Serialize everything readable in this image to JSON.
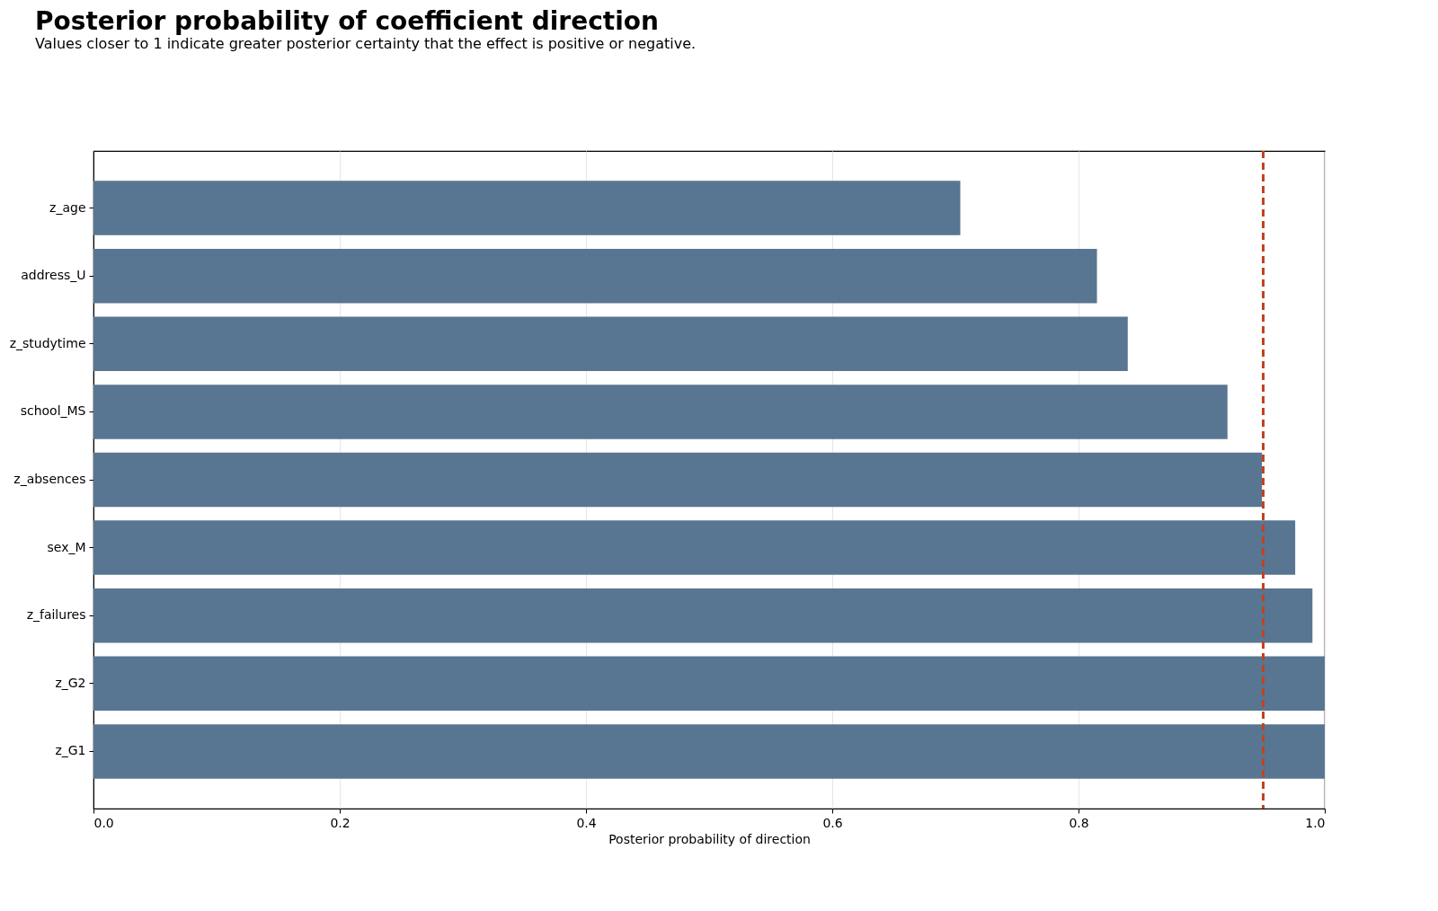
{
  "chart_data": {
    "type": "bar",
    "orientation": "horizontal",
    "title": "Posterior probability of coefficient direction",
    "subtitle": "Values closer to 1 indicate greater posterior certainty that the effect is positive or negative.",
    "xlabel": "Posterior probability of direction",
    "categories": [
      "z_age",
      "address_U",
      "z_studytime",
      "school_MS",
      "z_absences",
      "sex_M",
      "z_failures",
      "z_G2",
      "z_G1"
    ],
    "values": [
      0.704,
      0.815,
      0.84,
      0.921,
      0.949,
      0.976,
      0.99,
      1.0,
      1.0
    ],
    "color": "#587691",
    "xlim": [
      0.0,
      1.0
    ],
    "xticks": [
      {
        "value": 0,
        "label": "0.0"
      },
      0.2,
      0.4,
      0.6,
      0.8,
      {
        "value": 1,
        "label": "1.0"
      }
    ],
    "grid": "x",
    "ref_lines": [
      {
        "axis": "x",
        "value": 0.95,
        "color": "#c0431f",
        "line_style": "dashed"
      }
    ]
  }
}
